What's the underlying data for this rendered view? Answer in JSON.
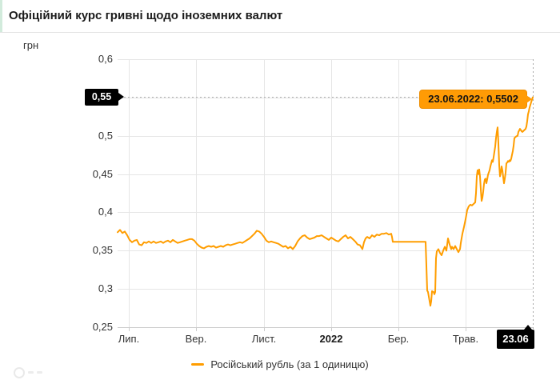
{
  "header": {
    "title": "Офіційний курс гривні щодо іноземних валют"
  },
  "axis_unit_label": "грн",
  "legend": {
    "series_label": "Російський рубль (за 1 одиницю)",
    "swatch_color": "#ff9d00"
  },
  "tooltip": {
    "text": "23.06.2022: 0,5502"
  },
  "crosshair_markers": {
    "y_label": "0,55",
    "x_label": "23.06"
  },
  "colors": {
    "series": "#ff9d00",
    "grid": "#e6e6e6",
    "axis_line": "#cccccc",
    "crosshair": "#ababab",
    "marker_bg": "#000000",
    "marker_text": "#ffffff",
    "tooltip_bg": "#ff9b05",
    "tooltip_border": "#ee8e00",
    "header_accent": "#d2ebdc"
  },
  "chart_data": {
    "type": "line",
    "title": "Офіційний курс гривні щодо іноземних валют",
    "ylabel": "грн",
    "xlabel": "",
    "grid": true,
    "legend_position": "bottom-center",
    "y_range": [
      0.25,
      0.6
    ],
    "x_range": [
      0,
      519
    ],
    "y_ticks": [
      {
        "value": 0.25,
        "label": "0,25"
      },
      {
        "value": 0.3,
        "label": "0,3"
      },
      {
        "value": 0.35,
        "label": "0,35"
      },
      {
        "value": 0.4,
        "label": "0,4"
      },
      {
        "value": 0.45,
        "label": "0,45"
      },
      {
        "value": 0.5,
        "label": "0,5"
      },
      {
        "value": 0.55,
        "label": "0,55",
        "hidden_behind_marker": true
      },
      {
        "value": 0.6,
        "label": "0,6"
      }
    ],
    "x_ticks": [
      {
        "pos": 14,
        "label": "Лип."
      },
      {
        "pos": 98,
        "label": "Вер."
      },
      {
        "pos": 183,
        "label": "Лист."
      },
      {
        "pos": 267,
        "label": "2022",
        "bold": true
      },
      {
        "pos": 351,
        "label": "Бер."
      },
      {
        "pos": 435,
        "label": "Трав."
      },
      {
        "pos": 519,
        "label": "23.06",
        "marker": true
      }
    ],
    "highlight": {
      "x": 519,
      "value": 0.5502,
      "date": "23.06.2022",
      "display": "23.06.2022: 0,5502"
    },
    "series": [
      {
        "name": "Російський рубль (за 1 одиницю)",
        "color": "#ff9d00",
        "points": [
          [
            0,
            0.374
          ],
          [
            3,
            0.377
          ],
          [
            6,
            0.373
          ],
          [
            9,
            0.375
          ],
          [
            12,
            0.37
          ],
          [
            15,
            0.364
          ],
          [
            18,
            0.361
          ],
          [
            21,
            0.363
          ],
          [
            24,
            0.364
          ],
          [
            27,
            0.358
          ],
          [
            30,
            0.357
          ],
          [
            33,
            0.361
          ],
          [
            36,
            0.36
          ],
          [
            39,
            0.362
          ],
          [
            42,
            0.36
          ],
          [
            45,
            0.362
          ],
          [
            48,
            0.36
          ],
          [
            51,
            0.361
          ],
          [
            54,
            0.362
          ],
          [
            57,
            0.36
          ],
          [
            60,
            0.362
          ],
          [
            63,
            0.363
          ],
          [
            66,
            0.361
          ],
          [
            69,
            0.364
          ],
          [
            72,
            0.362
          ],
          [
            75,
            0.36
          ],
          [
            78,
            0.361
          ],
          [
            81,
            0.362
          ],
          [
            84,
            0.363
          ],
          [
            87,
            0.364
          ],
          [
            90,
            0.365
          ],
          [
            93,
            0.365
          ],
          [
            96,
            0.363
          ],
          [
            99,
            0.359
          ],
          [
            102,
            0.356
          ],
          [
            105,
            0.354
          ],
          [
            108,
            0.353
          ],
          [
            111,
            0.355
          ],
          [
            114,
            0.356
          ],
          [
            117,
            0.355
          ],
          [
            120,
            0.356
          ],
          [
            123,
            0.354
          ],
          [
            126,
            0.355
          ],
          [
            129,
            0.356
          ],
          [
            132,
            0.355
          ],
          [
            135,
            0.357
          ],
          [
            138,
            0.358
          ],
          [
            141,
            0.357
          ],
          [
            144,
            0.358
          ],
          [
            147,
            0.359
          ],
          [
            150,
            0.36
          ],
          [
            153,
            0.361
          ],
          [
            156,
            0.36
          ],
          [
            159,
            0.362
          ],
          [
            162,
            0.364
          ],
          [
            165,
            0.366
          ],
          [
            168,
            0.369
          ],
          [
            171,
            0.372
          ],
          [
            174,
            0.376
          ],
          [
            177,
            0.375
          ],
          [
            180,
            0.372
          ],
          [
            183,
            0.368
          ],
          [
            186,
            0.363
          ],
          [
            189,
            0.361
          ],
          [
            192,
            0.362
          ],
          [
            195,
            0.361
          ],
          [
            198,
            0.36
          ],
          [
            201,
            0.359
          ],
          [
            204,
            0.357
          ],
          [
            207,
            0.355
          ],
          [
            210,
            0.356
          ],
          [
            213,
            0.353
          ],
          [
            216,
            0.355
          ],
          [
            219,
            0.352
          ],
          [
            222,
            0.356
          ],
          [
            225,
            0.362
          ],
          [
            228,
            0.366
          ],
          [
            231,
            0.369
          ],
          [
            234,
            0.37
          ],
          [
            237,
            0.367
          ],
          [
            240,
            0.365
          ],
          [
            243,
            0.366
          ],
          [
            246,
            0.367
          ],
          [
            249,
            0.369
          ],
          [
            252,
            0.369
          ],
          [
            255,
            0.37
          ],
          [
            258,
            0.368
          ],
          [
            261,
            0.366
          ],
          [
            264,
            0.364
          ],
          [
            267,
            0.367
          ],
          [
            270,
            0.365
          ],
          [
            273,
            0.363
          ],
          [
            276,
            0.362
          ],
          [
            279,
            0.365
          ],
          [
            282,
            0.368
          ],
          [
            285,
            0.37
          ],
          [
            288,
            0.366
          ],
          [
            291,
            0.368
          ],
          [
            294,
            0.365
          ],
          [
            297,
            0.362
          ],
          [
            300,
            0.358
          ],
          [
            303,
            0.357
          ],
          [
            306,
            0.352
          ],
          [
            308,
            0.361
          ],
          [
            310,
            0.366
          ],
          [
            312,
            0.368
          ],
          [
            315,
            0.366
          ],
          [
            318,
            0.37
          ],
          [
            321,
            0.368
          ],
          [
            324,
            0.371
          ],
          [
            327,
            0.37
          ],
          [
            330,
            0.372
          ],
          [
            333,
            0.372
          ],
          [
            336,
            0.373
          ],
          [
            339,
            0.371
          ],
          [
            342,
            0.372
          ],
          [
            343,
            0.368
          ],
          [
            344,
            0.3615
          ],
          [
            385,
            0.3615
          ],
          [
            386,
            0.33
          ],
          [
            387,
            0.298
          ],
          [
            388,
            0.296
          ],
          [
            390,
            0.284
          ],
          [
            391,
            0.278
          ],
          [
            392,
            0.284
          ],
          [
            393,
            0.297
          ],
          [
            395,
            0.296
          ],
          [
            396,
            0.293
          ],
          [
            397,
            0.296
          ],
          [
            398,
            0.34
          ],
          [
            399,
            0.349
          ],
          [
            401,
            0.352
          ],
          [
            403,
            0.347
          ],
          [
            405,
            0.344
          ],
          [
            407,
            0.35
          ],
          [
            409,
            0.355
          ],
          [
            411,
            0.35
          ],
          [
            413,
            0.366
          ],
          [
            415,
            0.358
          ],
          [
            417,
            0.352
          ],
          [
            418,
            0.355
          ],
          [
            420,
            0.352
          ],
          [
            422,
            0.356
          ],
          [
            424,
            0.352
          ],
          [
            426,
            0.348
          ],
          [
            428,
            0.352
          ],
          [
            429,
            0.36
          ],
          [
            431,
            0.372
          ],
          [
            433,
            0.381
          ],
          [
            435,
            0.391
          ],
          [
            437,
            0.403
          ],
          [
            439,
            0.408
          ],
          [
            441,
            0.41
          ],
          [
            443,
            0.409
          ],
          [
            445,
            0.411
          ],
          [
            447,
            0.413
          ],
          [
            448,
            0.425
          ],
          [
            449,
            0.447
          ],
          [
            450,
            0.455
          ],
          [
            451,
            0.45
          ],
          [
            452,
            0.456
          ],
          [
            453,
            0.447
          ],
          [
            454,
            0.43
          ],
          [
            455,
            0.415
          ],
          [
            456,
            0.419
          ],
          [
            457,
            0.427
          ],
          [
            458,
            0.437
          ],
          [
            459,
            0.443
          ],
          [
            460,
            0.444
          ],
          [
            461,
            0.438
          ],
          [
            462,
            0.443
          ],
          [
            463,
            0.449
          ],
          [
            465,
            0.455
          ],
          [
            466,
            0.46
          ],
          [
            468,
            0.468
          ],
          [
            469,
            0.466
          ],
          [
            470,
            0.472
          ],
          [
            471,
            0.479
          ],
          [
            472,
            0.486
          ],
          [
            473,
            0.497
          ],
          [
            474,
            0.505
          ],
          [
            475,
            0.511
          ],
          [
            476,
            0.49
          ],
          [
            477,
            0.462
          ],
          [
            478,
            0.447
          ],
          [
            479,
            0.452
          ],
          [
            480,
            0.46
          ],
          [
            481,
            0.455
          ],
          [
            482,
            0.446
          ],
          [
            483,
            0.438
          ],
          [
            484,
            0.444
          ],
          [
            485,
            0.452
          ],
          [
            486,
            0.464
          ],
          [
            487,
            0.465
          ],
          [
            488,
            0.467
          ],
          [
            489,
            0.466
          ],
          [
            490,
            0.468
          ],
          [
            491,
            0.467
          ],
          [
            492,
            0.47
          ],
          [
            493,
            0.475
          ],
          [
            494,
            0.48
          ],
          [
            495,
            0.487
          ],
          [
            496,
            0.497
          ],
          [
            498,
            0.499
          ],
          [
            500,
            0.5
          ],
          [
            501,
            0.505
          ],
          [
            503,
            0.509
          ],
          [
            505,
            0.506
          ],
          [
            506,
            0.505
          ],
          [
            508,
            0.507
          ],
          [
            510,
            0.509
          ],
          [
            511,
            0.512
          ],
          [
            512,
            0.519
          ],
          [
            513,
            0.528
          ],
          [
            514,
            0.532
          ],
          [
            515,
            0.537
          ],
          [
            517,
            0.544
          ],
          [
            519,
            0.5502
          ]
        ]
      }
    ]
  }
}
